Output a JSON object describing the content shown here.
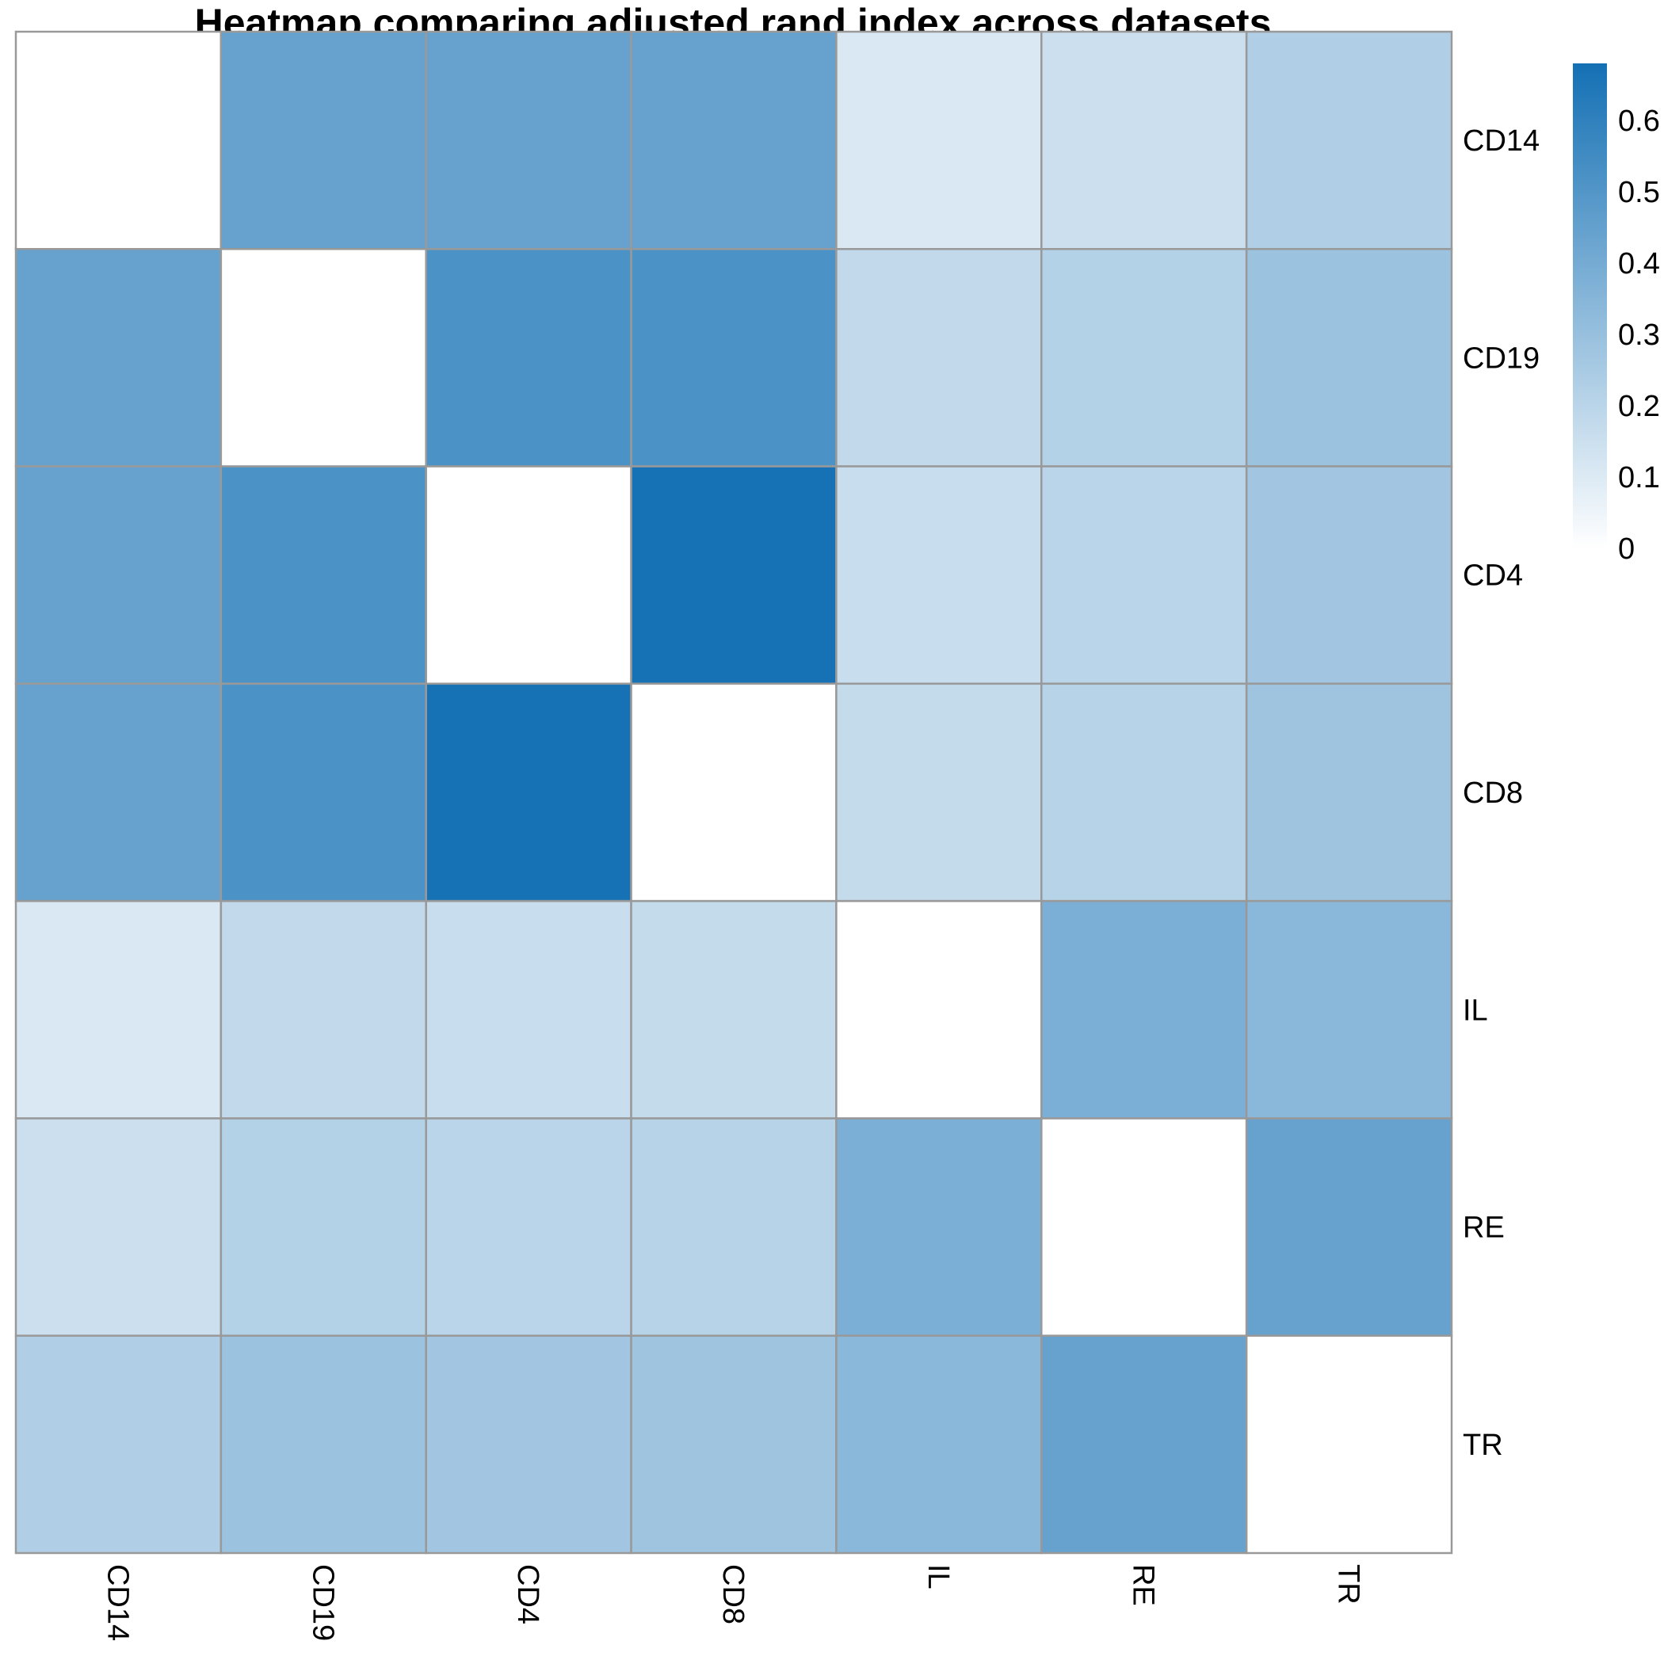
{
  "chart_data": {
    "type": "heatmap",
    "title": "Heatmap comparing adjusted rand index across datasets",
    "xlabel": "",
    "ylabel": "",
    "rows": [
      "CD14",
      "CD19",
      "CD4",
      "CD8",
      "IL",
      "RE",
      "TR"
    ],
    "cols": [
      "CD14",
      "CD19",
      "CD4",
      "CD8",
      "IL",
      "RE",
      "TR"
    ],
    "values": [
      [
        0.0,
        0.44,
        0.44,
        0.44,
        0.11,
        0.15,
        0.23
      ],
      [
        0.44,
        0.0,
        0.52,
        0.52,
        0.18,
        0.22,
        0.29
      ],
      [
        0.44,
        0.52,
        0.0,
        0.67,
        0.16,
        0.2,
        0.27
      ],
      [
        0.44,
        0.52,
        0.67,
        0.0,
        0.17,
        0.21,
        0.28
      ],
      [
        0.11,
        0.18,
        0.16,
        0.17,
        0.0,
        0.38,
        0.34
      ],
      [
        0.15,
        0.22,
        0.2,
        0.21,
        0.38,
        0.0,
        0.44
      ],
      [
        0.23,
        0.29,
        0.27,
        0.28,
        0.34,
        0.44,
        0.0
      ]
    ],
    "color_scale": {
      "min": 0,
      "max": 0.68,
      "low_color": "#ffffff",
      "high_color": "#1470b4",
      "ticks": [
        0,
        0.1,
        0.2,
        0.3,
        0.4,
        0.5,
        0.6
      ],
      "tick_labels": [
        "0",
        "0.1",
        "0.2",
        "0.3",
        "0.4",
        "0.5",
        "0.6"
      ]
    },
    "cell_border_color": "#999999",
    "legend": "right"
  }
}
